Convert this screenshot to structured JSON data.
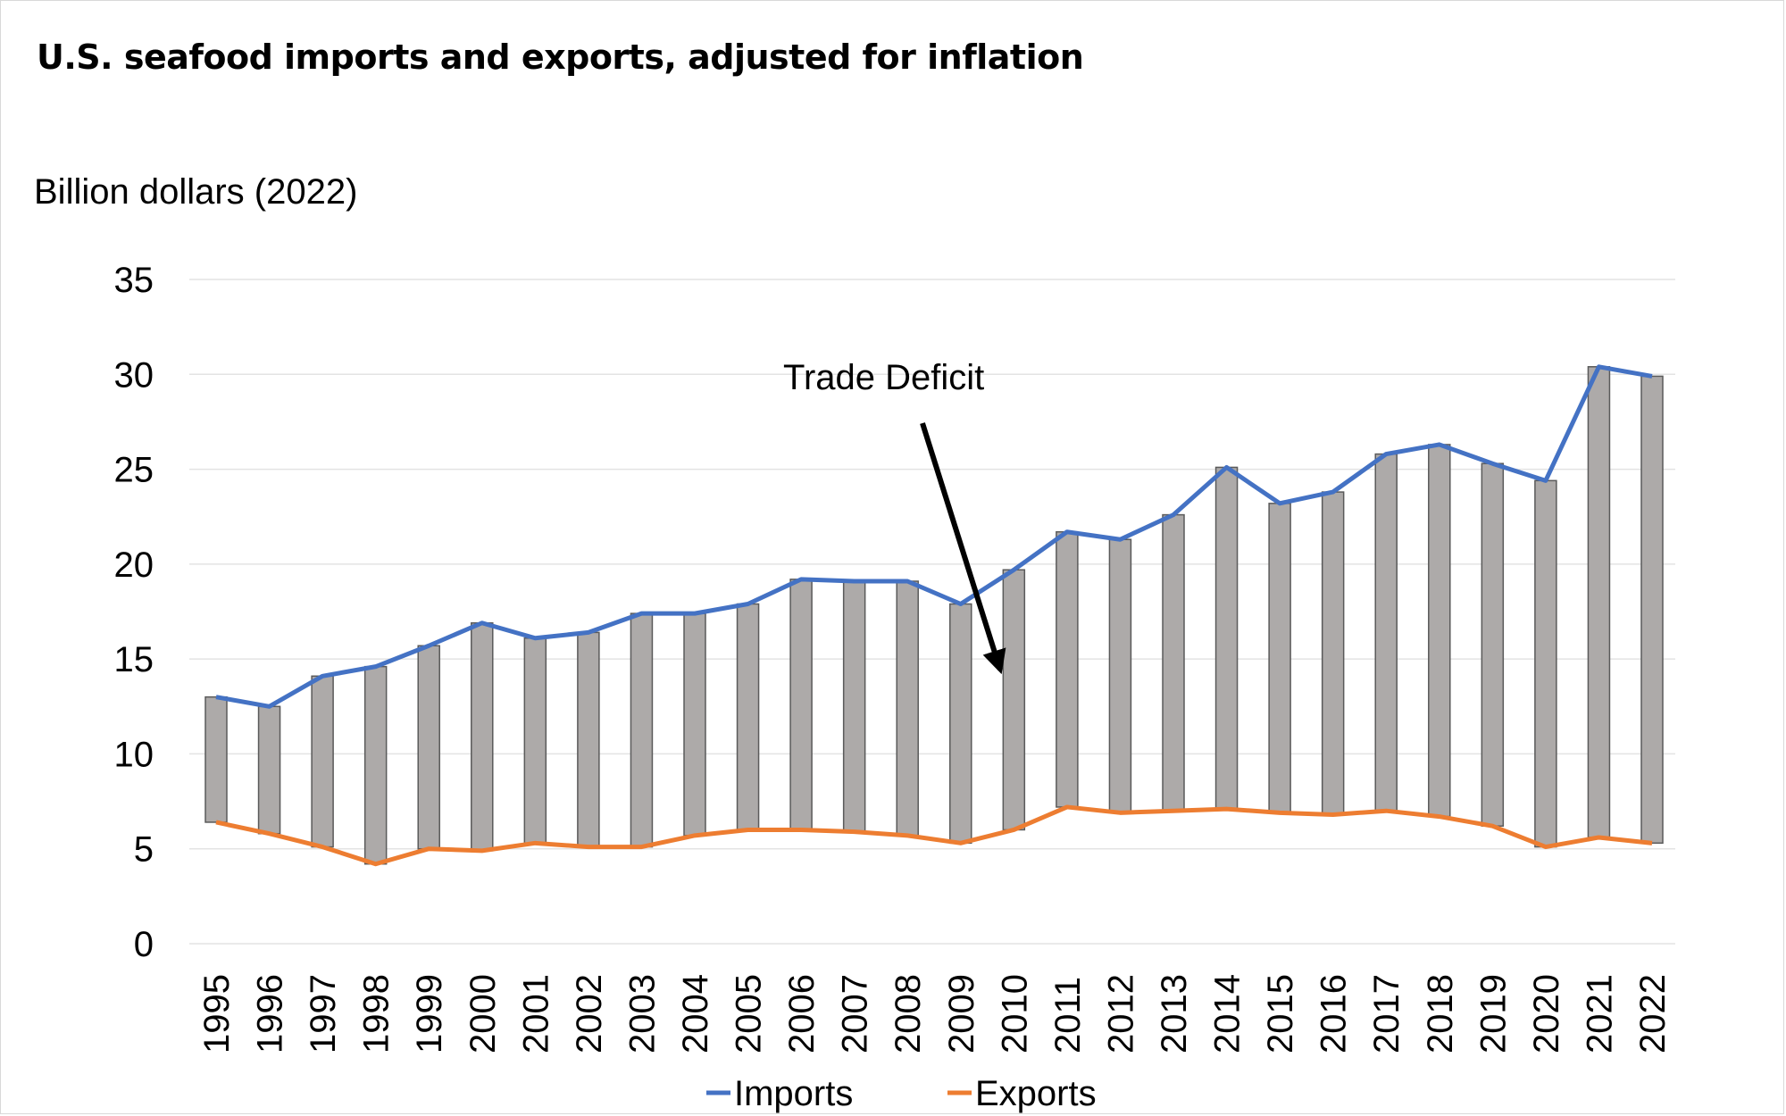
{
  "title": "U.S. seafood imports and exports, adjusted for inflation",
  "chart_data": {
    "type": "line",
    "title": "U.S. seafood imports and exports, adjusted for inflation",
    "ylabel": "Billion dollars (2022)",
    "xlabel": "",
    "ylim": [
      0,
      35
    ],
    "yticks": [
      0,
      5,
      10,
      15,
      20,
      25,
      30,
      35
    ],
    "grid": true,
    "legend_position": "bottom",
    "x": [
      "1995",
      "1996",
      "1997",
      "1998",
      "1999",
      "2000",
      "2001",
      "2002",
      "2003",
      "2004",
      "2005",
      "2006",
      "2007",
      "2008",
      "2009",
      "2010",
      "2011",
      "2012",
      "2013",
      "2014",
      "2015",
      "2016",
      "2017",
      "2018",
      "2019",
      "2020",
      "2021",
      "2022"
    ],
    "series": [
      {
        "name": "Imports",
        "color": "#4472C4",
        "values": [
          13.0,
          12.5,
          14.1,
          14.6,
          15.7,
          16.9,
          16.1,
          16.4,
          17.4,
          17.4,
          17.9,
          19.2,
          19.1,
          19.1,
          17.9,
          19.7,
          21.7,
          21.3,
          22.6,
          25.1,
          23.2,
          23.8,
          25.8,
          26.3,
          25.3,
          24.4,
          30.4,
          29.9
        ]
      },
      {
        "name": "Exports",
        "color": "#ED7D31",
        "values": [
          6.4,
          5.8,
          5.1,
          4.2,
          5.0,
          4.9,
          5.3,
          5.1,
          5.1,
          5.7,
          6.0,
          6.0,
          5.9,
          5.7,
          5.3,
          6.0,
          7.2,
          6.9,
          7.0,
          7.1,
          6.9,
          6.8,
          7.0,
          6.7,
          6.2,
          5.1,
          5.6,
          5.3
        ]
      }
    ],
    "bars_label": "",
    "bar_color": "#ADAAA9",
    "annotations": [
      {
        "text": "Trade Deficit",
        "arrow": true,
        "points_to_year": "2010"
      }
    ]
  }
}
